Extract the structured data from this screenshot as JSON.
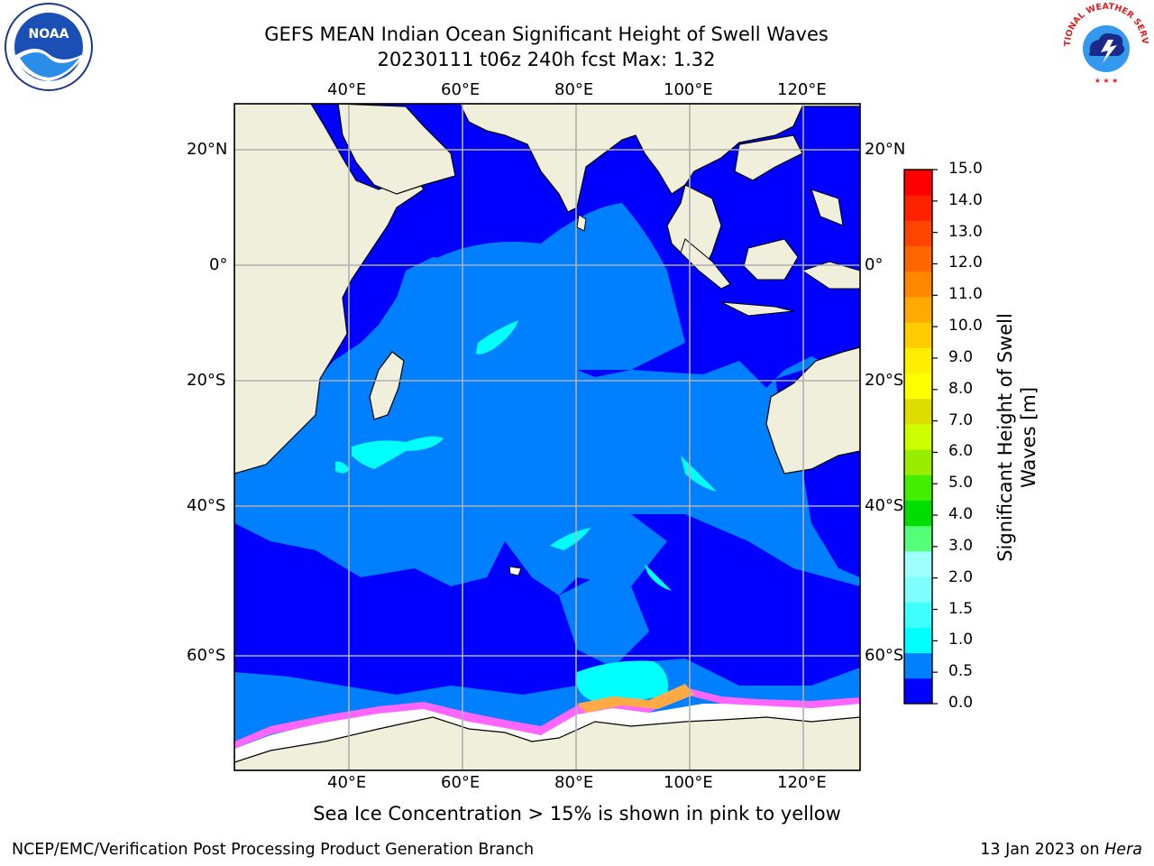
{
  "header": {
    "title_line1": "GEFS MEAN Indian Ocean Significant Height of Swell Waves",
    "title_line2": "20230111 t06z 240h fcst   Max: 1.32"
  },
  "map": {
    "lon_labels": [
      "40°E",
      "60°E",
      "80°E",
      "100°E",
      "120°E"
    ],
    "lat_labels": [
      "20°N",
      "0°",
      "20°S",
      "40°S",
      "60°S"
    ],
    "colors": {
      "ocean_low": "#0000ff",
      "ocean_mid": "#0080ff",
      "ocean_high": "#00ffff",
      "land": "#efefdc",
      "ice": "#ffffff",
      "ice_edge_pink": "#ff66ff",
      "ice_edge_orange": "#ffaa44",
      "grid": "#b0b0b0"
    }
  },
  "colorbar": {
    "title_line1": "Significant Height of Swell",
    "title_line2": "Waves [m]",
    "ticks": [
      "15.0",
      "14.0",
      "13.0",
      "12.0",
      "11.0",
      "10.0",
      "9.0",
      "8.0",
      "7.0",
      "6.0",
      "5.0",
      "4.0",
      "3.0",
      "2.0",
      "1.5",
      "1.0",
      "0.5",
      "0.0"
    ],
    "colors_bottom_to_top": [
      "#0000ff",
      "#0080ff",
      "#00ffff",
      "#40ffff",
      "#80ffff",
      "#a0ffff",
      "#55ff77",
      "#00dd00",
      "#44ee00",
      "#99ee00",
      "#ccff00",
      "#dddd00",
      "#ffff00",
      "#ffee00",
      "#ffcc00",
      "#ffaa00",
      "#ff8800",
      "#ff6600",
      "#ff4400",
      "#ff2200",
      "#ff0000"
    ]
  },
  "note": "Sea Ice Concentration > 15% is shown in pink to yellow",
  "footer": {
    "left": "NCEP/EMC/Verification Post Processing Product Generation Branch",
    "right_prefix": "13 Jan 2023 on ",
    "right_machine": "Hera"
  },
  "logos": {
    "noaa_text": "NOAA",
    "nws_text": "NATIONAL WEATHER SERVICE"
  }
}
